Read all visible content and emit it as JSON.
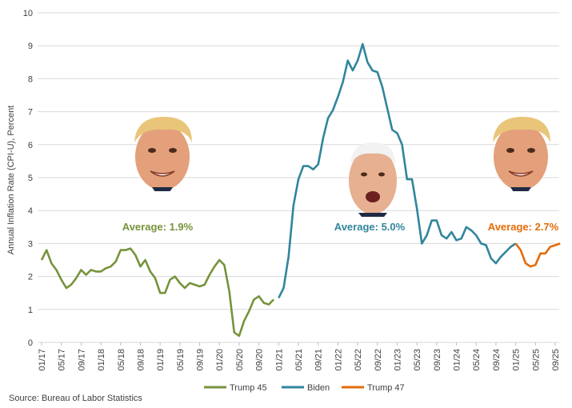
{
  "chart_data": {
    "type": "line",
    "ylabel": "Annual Inflation Rate (CPI-U),  Percent",
    "ylim": [
      0,
      10
    ],
    "yticks": [
      "0",
      "1",
      "2",
      "3",
      "4",
      "5",
      "6",
      "7",
      "8",
      "9",
      "10"
    ],
    "xtick_labels": [
      "01/17",
      "05/17",
      "09/17",
      "01/18",
      "05/18",
      "09/18",
      "01/19",
      "05/19",
      "09/19",
      "01/20",
      "05/20",
      "09/20",
      "01/21",
      "05/21",
      "09/21",
      "01/22",
      "05/22",
      "09/22",
      "01/23",
      "05/23",
      "09/23",
      "01/24",
      "05/24",
      "09/24",
      "01/25",
      "05/25",
      "09/25"
    ],
    "grid": "horizontal",
    "legend_position": "bottom",
    "series": [
      {
        "name": "Trump 45",
        "color": "#77933C",
        "start": "01/17",
        "average_label": "Average: 1.9%",
        "values": [
          2.5,
          2.8,
          2.4,
          2.2,
          1.9,
          1.65,
          1.75,
          1.95,
          2.2,
          2.05,
          2.2,
          2.15,
          2.15,
          2.25,
          2.3,
          2.45,
          2.8,
          2.8,
          2.85,
          2.65,
          2.3,
          2.5,
          2.15,
          1.95,
          1.5,
          1.5,
          1.9,
          2.0,
          1.8,
          1.65,
          1.8,
          1.75,
          1.7,
          1.75,
          2.05,
          2.3,
          2.5,
          2.35,
          1.55,
          0.3,
          0.2,
          0.65,
          0.95,
          1.3,
          1.4,
          1.2,
          1.15,
          1.3
        ]
      },
      {
        "name": "Biden",
        "color": "#31859C",
        "start": "01/21",
        "average_label": "Average: 5.0%",
        "values": [
          1.35,
          1.65,
          2.6,
          4.15,
          4.95,
          5.35,
          5.35,
          5.25,
          5.4,
          6.2,
          6.8,
          7.05,
          7.45,
          7.9,
          8.55,
          8.25,
          8.55,
          9.05,
          8.5,
          8.25,
          8.2,
          7.75,
          7.1,
          6.45,
          6.35,
          6.0,
          4.95,
          4.95,
          4.05,
          3.0,
          3.25,
          3.7,
          3.7,
          3.25,
          3.15,
          3.35,
          3.1,
          3.15,
          3.5,
          3.4,
          3.25,
          3.0,
          2.95,
          2.55,
          2.4,
          2.6,
          2.75,
          2.9,
          3.0
        ]
      },
      {
        "name": "Trump 47",
        "color": "#E36C09",
        "start": "01/25",
        "average_label": "Average: 2.7%",
        "values": [
          3.0,
          2.8,
          2.4,
          2.3,
          2.35,
          2.7,
          2.7,
          2.9,
          2.95,
          3.0
        ]
      }
    ]
  },
  "faces": [
    {
      "icon": "trump-portrait",
      "position": "left"
    },
    {
      "icon": "biden-portrait",
      "position": "center"
    },
    {
      "icon": "trump-portrait",
      "position": "right"
    }
  ],
  "source": "Source: Bureau of Labor Statistics"
}
